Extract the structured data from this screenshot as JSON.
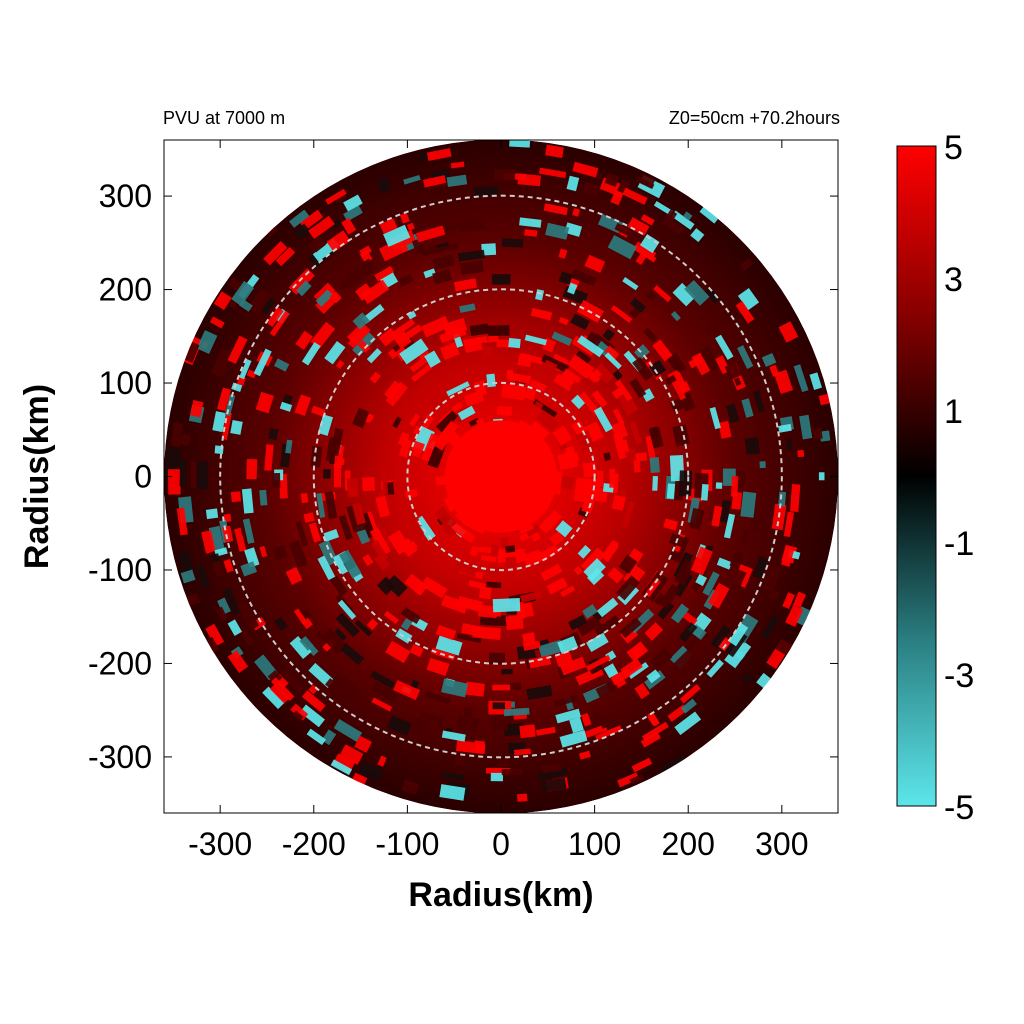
{
  "chart_data": {
    "type": "heatmap",
    "title_left": "PVU at  7000 m",
    "title_right": "Z0=50cm  +70.2hours",
    "xlabel": "Radius(km)",
    "ylabel": "Radius(km)",
    "xlim": [
      -360,
      360
    ],
    "ylim": [
      -360,
      360
    ],
    "x_ticks": [
      -300,
      -200,
      -100,
      0,
      100,
      200,
      300
    ],
    "y_ticks": [
      300,
      200,
      100,
      0,
      -100,
      -200,
      -300
    ],
    "domain_radius_km": 360,
    "range_rings_km": [
      100,
      200,
      300
    ],
    "colorbar": {
      "min": -5,
      "max": 5,
      "ticks": [
        5,
        3,
        1,
        -1,
        -3,
        -5
      ],
      "colors": {
        "low": "#5ce6ea",
        "mid": "#000000",
        "high": "#ff0000"
      }
    },
    "core_radius_km": 60
  }
}
